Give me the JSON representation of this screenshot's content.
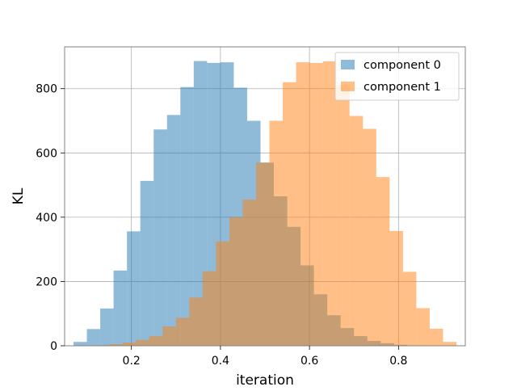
{
  "chart_data": {
    "type": "bar",
    "histogram": true,
    "xlabel": "iteration",
    "ylabel": "KL",
    "xlim": [
      0.05,
      0.95
    ],
    "ylim": [
      0,
      930
    ],
    "xticks": [
      0.2,
      0.4,
      0.6,
      0.8
    ],
    "xtick_labels": [
      "0.2",
      "0.4",
      "0.6",
      "0.8"
    ],
    "yticks": [
      0,
      200,
      400,
      600,
      800
    ],
    "ytick_labels": [
      "0",
      "200",
      "400",
      "600",
      "800"
    ],
    "grid": true,
    "legend": "top-right",
    "series": [
      {
        "name": "component 0",
        "color": "#1f77b4",
        "opacity": 0.5,
        "bin_edges": [
          0.07,
          0.1,
          0.13,
          0.16,
          0.19,
          0.22,
          0.25,
          0.28,
          0.31,
          0.34,
          0.37,
          0.4,
          0.43,
          0.46,
          0.49,
          0.52,
          0.55,
          0.58,
          0.61,
          0.64,
          0.67,
          0.7,
          0.73,
          0.76,
          0.79,
          0.82,
          0.85,
          0.88,
          0.91
        ],
        "values": [
          12,
          52,
          116,
          234,
          356,
          513,
          673,
          718,
          805,
          886,
          880,
          882,
          803,
          700,
          570,
          465,
          370,
          250,
          160,
          95,
          55,
          30,
          15,
          8,
          3,
          1,
          0,
          0
        ]
      },
      {
        "name": "component 1",
        "color": "#ff7f0e",
        "opacity": 0.5,
        "bin_edges": [
          0.09,
          0.12,
          0.15,
          0.18,
          0.21,
          0.24,
          0.27,
          0.3,
          0.33,
          0.36,
          0.39,
          0.42,
          0.45,
          0.48,
          0.51,
          0.54,
          0.57,
          0.6,
          0.63,
          0.66,
          0.69,
          0.72,
          0.75,
          0.78,
          0.81,
          0.84,
          0.87,
          0.9,
          0.93
        ],
        "values": [
          0,
          2,
          5,
          10,
          18,
          30,
          60,
          87,
          150,
          232,
          325,
          400,
          455,
          570,
          700,
          820,
          882,
          880,
          885,
          812,
          715,
          675,
          525,
          357,
          230,
          117,
          53,
          12
        ]
      }
    ]
  }
}
